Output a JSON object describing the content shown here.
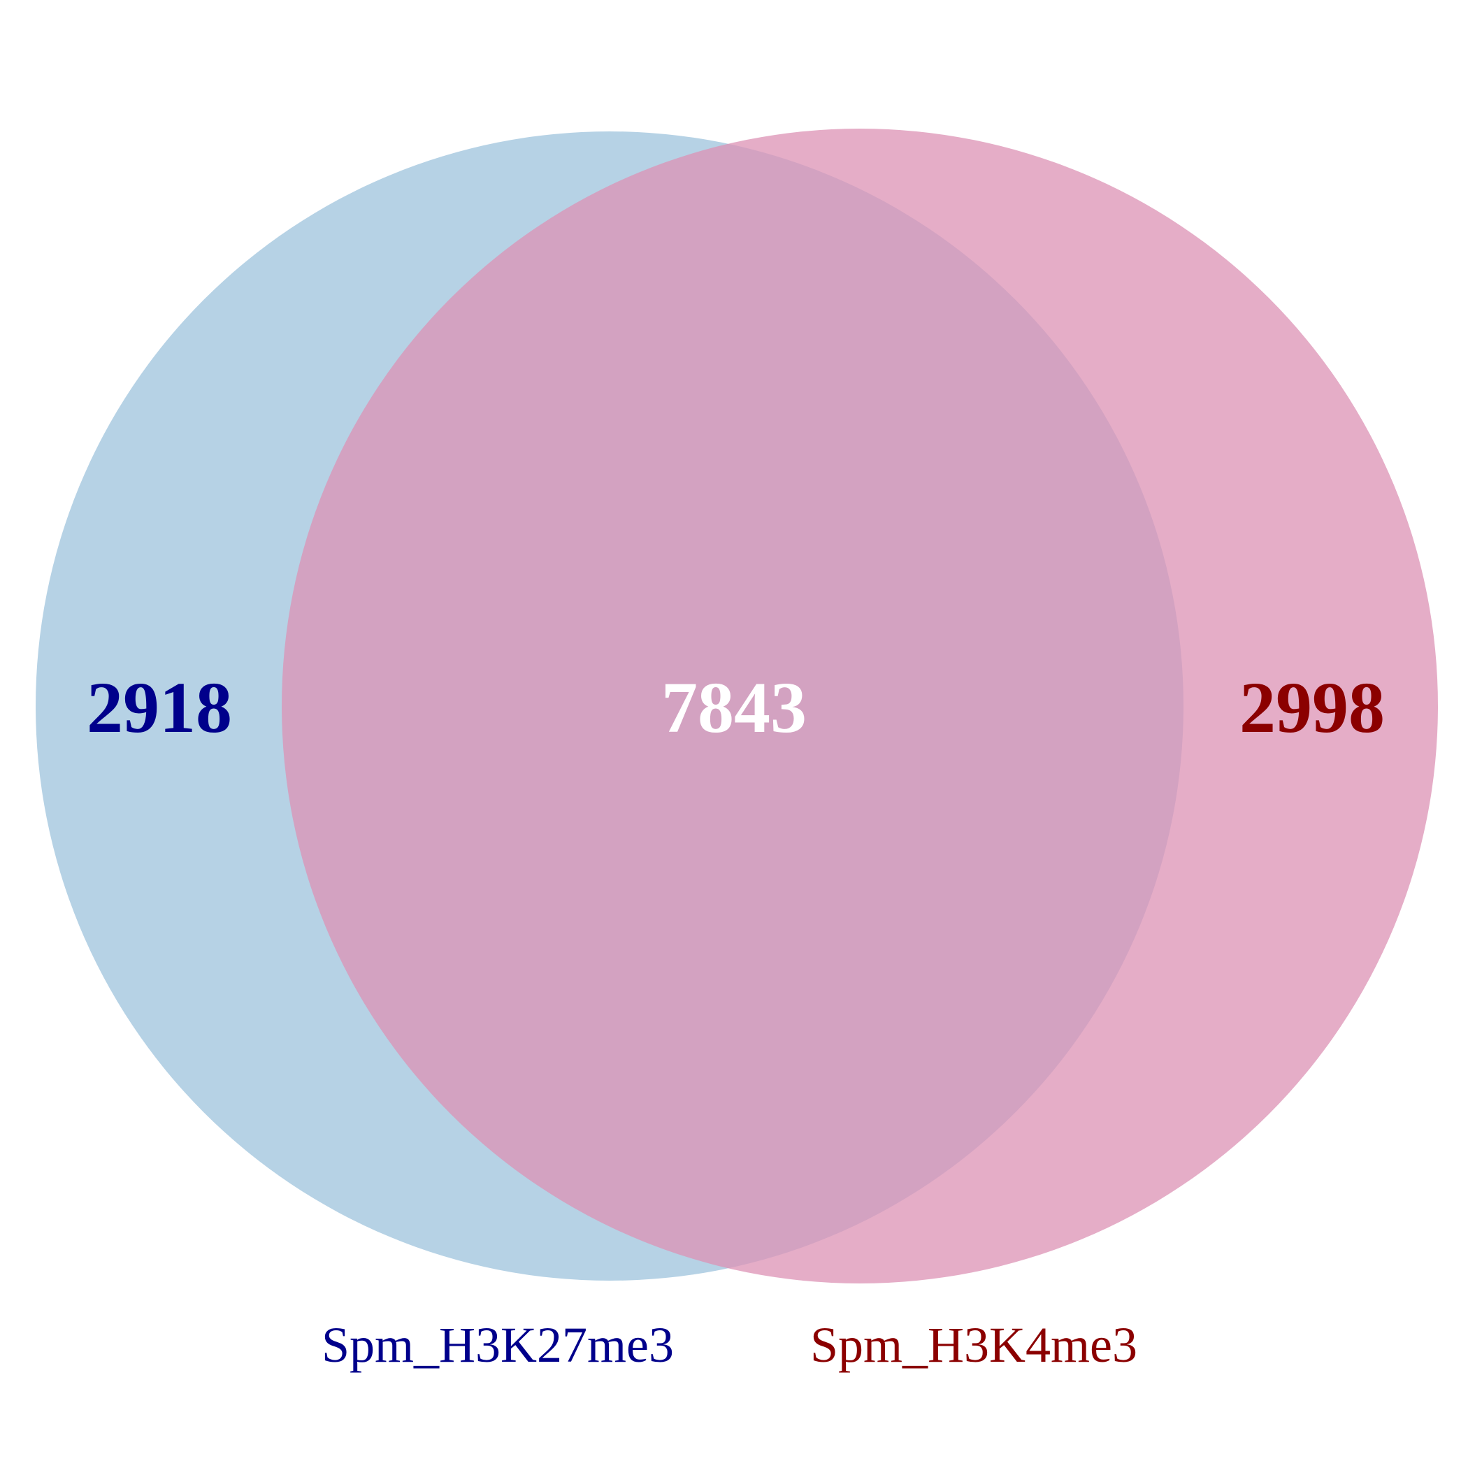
{
  "chart_data": {
    "type": "venn",
    "sets": [
      {
        "name": "Spm_H3K27me3",
        "only_count": "2918",
        "fill_color": "#9ec3dc",
        "text_color": "#00008b"
      },
      {
        "name": "Spm_H3K4me3",
        "only_count": "2998",
        "fill_color": "#dc92b4",
        "text_color": "#8b0000"
      }
    ],
    "intersection": {
      "count": "7843",
      "text_color": "#ffffff"
    }
  }
}
